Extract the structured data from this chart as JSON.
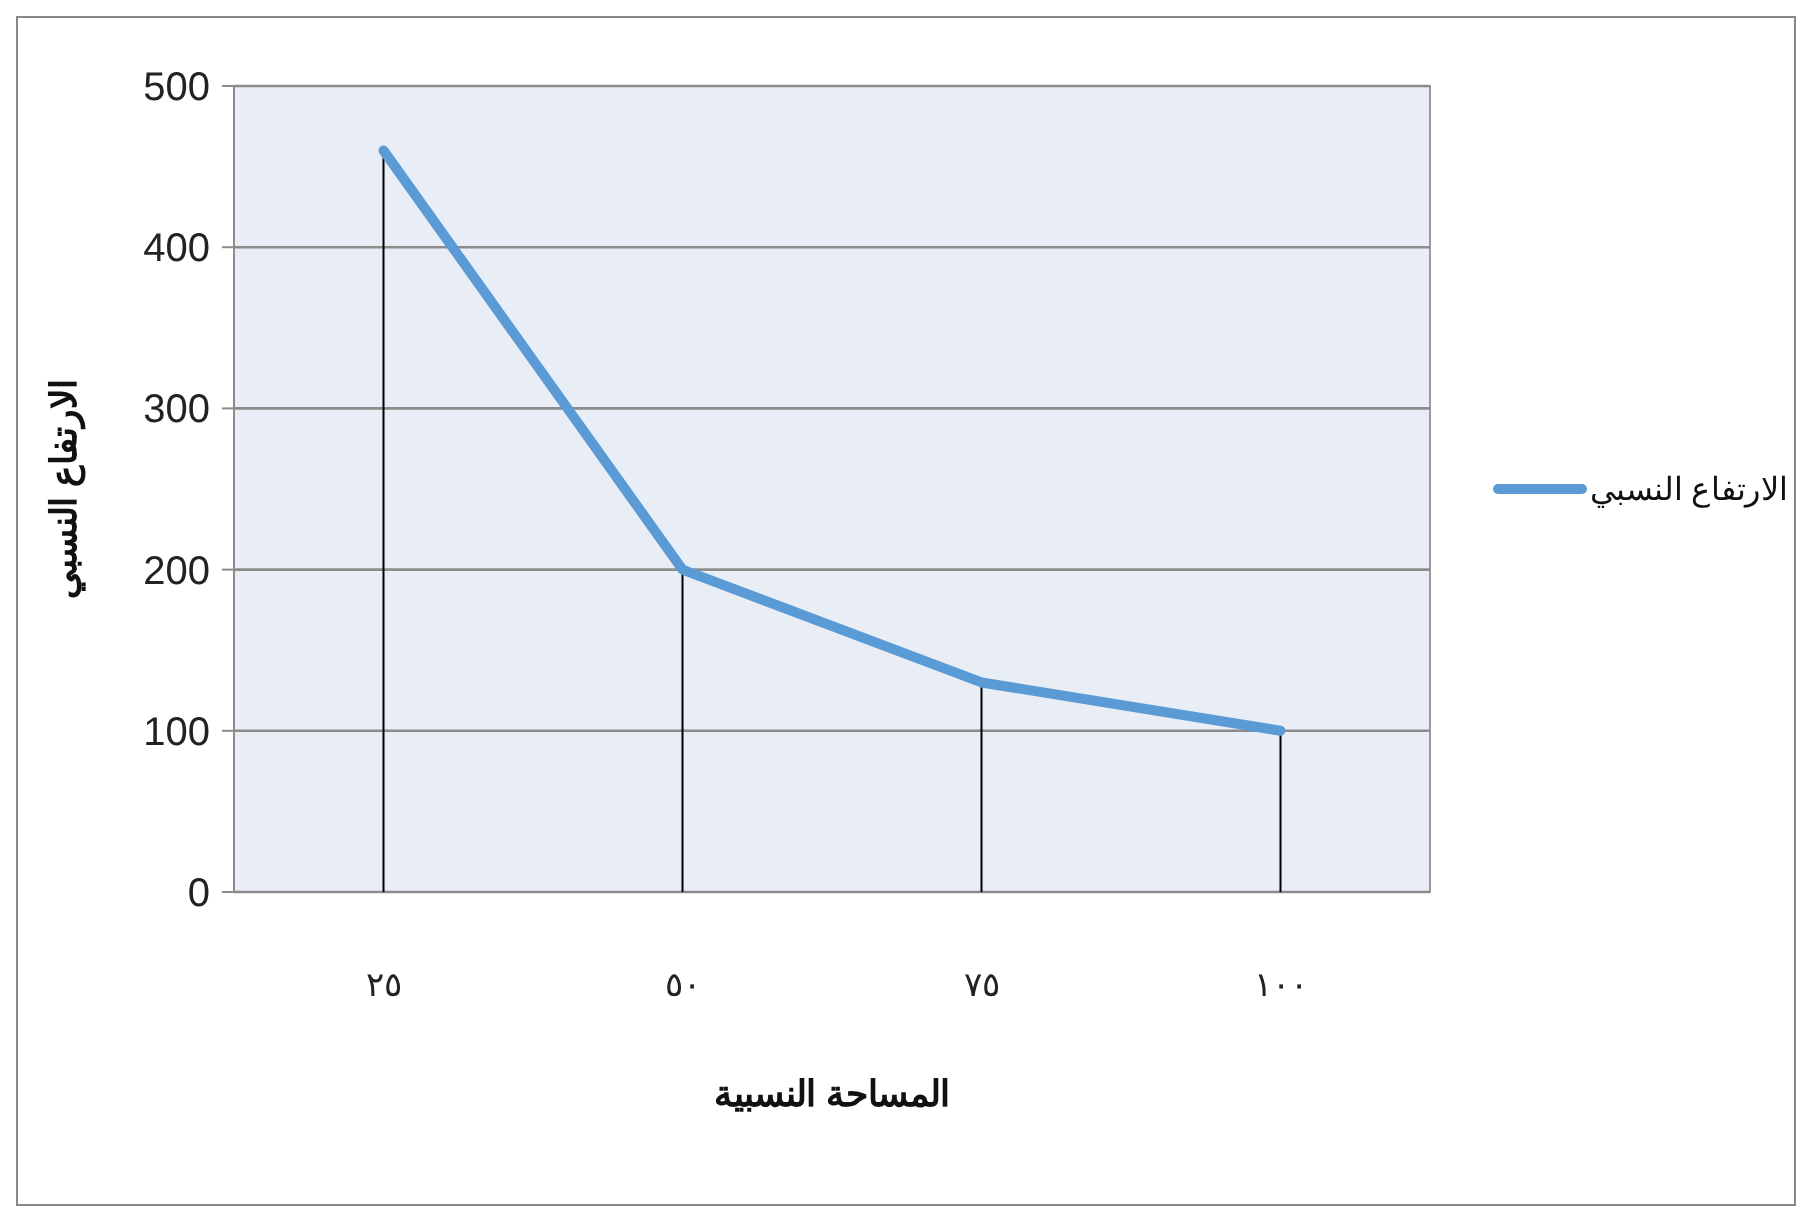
{
  "chart_data": {
    "type": "line",
    "xlabel": "المساحة النسبية",
    "ylabel": "الارتفاع النسبي",
    "categories": [
      "٢٥",
      "٥٠",
      "٧٥",
      "١٠٠"
    ],
    "series": [
      {
        "name": "الارتفاع النسبي",
        "color": "#5b9bd5",
        "values": [
          460,
          200,
          130,
          100
        ],
        "errors": [
          [
            0,
            460
          ],
          [
            0,
            200
          ],
          [
            0,
            130
          ],
          [
            0,
            100
          ]
        ]
      }
    ],
    "ylim": [
      0,
      500
    ],
    "yticks": [
      0,
      100,
      200,
      300,
      400,
      500
    ],
    "grid": "y",
    "legend": "right",
    "marker": "none"
  }
}
